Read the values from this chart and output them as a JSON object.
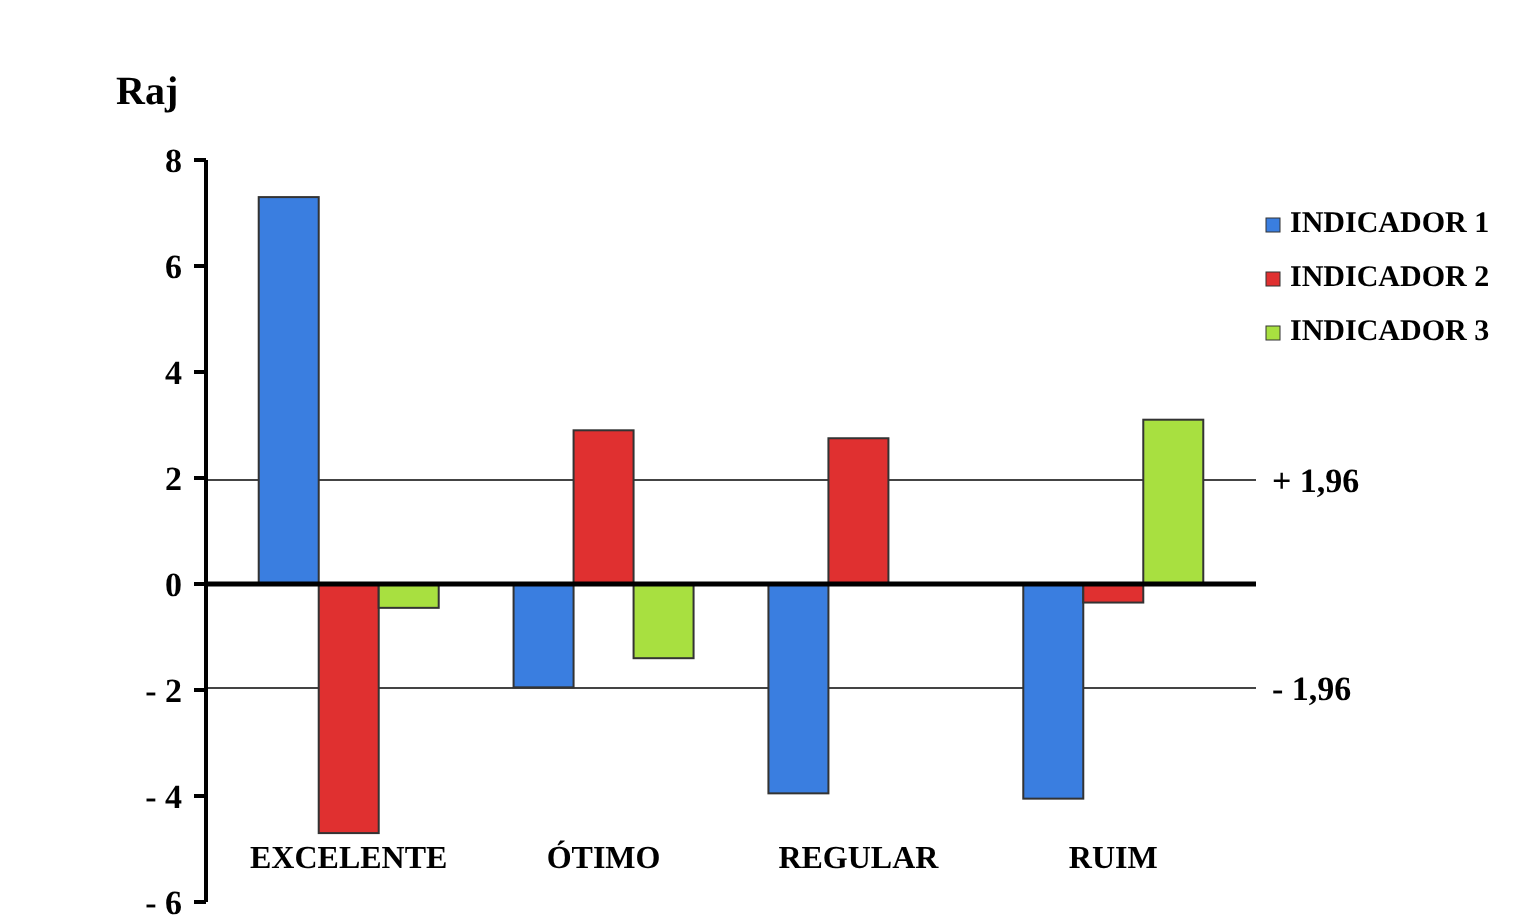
{
  "chart_data": {
    "type": "bar",
    "ylabel": "Raj",
    "categories": [
      "EXCELENTE",
      "ÓTIMO",
      "REGULAR",
      "RUIM"
    ],
    "series": [
      {
        "name": "INDICADOR 1",
        "color": "#3a7ee0",
        "values": [
          7.3,
          -1.95,
          -3.95,
          -4.05
        ]
      },
      {
        "name": "INDICADOR 2",
        "color": "#e03030",
        "values": [
          -4.7,
          2.9,
          2.75,
          -0.35
        ]
      },
      {
        "name": "INDICADOR 3",
        "color": "#a8e040",
        "values": [
          -0.45,
          -1.4,
          null,
          3.1
        ]
      }
    ],
    "ylim": [
      -6,
      8
    ],
    "yticks": [
      {
        "value": -6,
        "label": "- 6"
      },
      {
        "value": -4,
        "label": "- 4"
      },
      {
        "value": -2,
        "label": "- 2"
      },
      0,
      2,
      4,
      6,
      8
    ],
    "ref_lines": [
      {
        "axis": "y",
        "value": 1.96,
        "label": "+ 1,96"
      },
      {
        "axis": "y",
        "value": -1.96,
        "label": "- 1,96"
      }
    ],
    "legend": "top right",
    "grid": false
  }
}
